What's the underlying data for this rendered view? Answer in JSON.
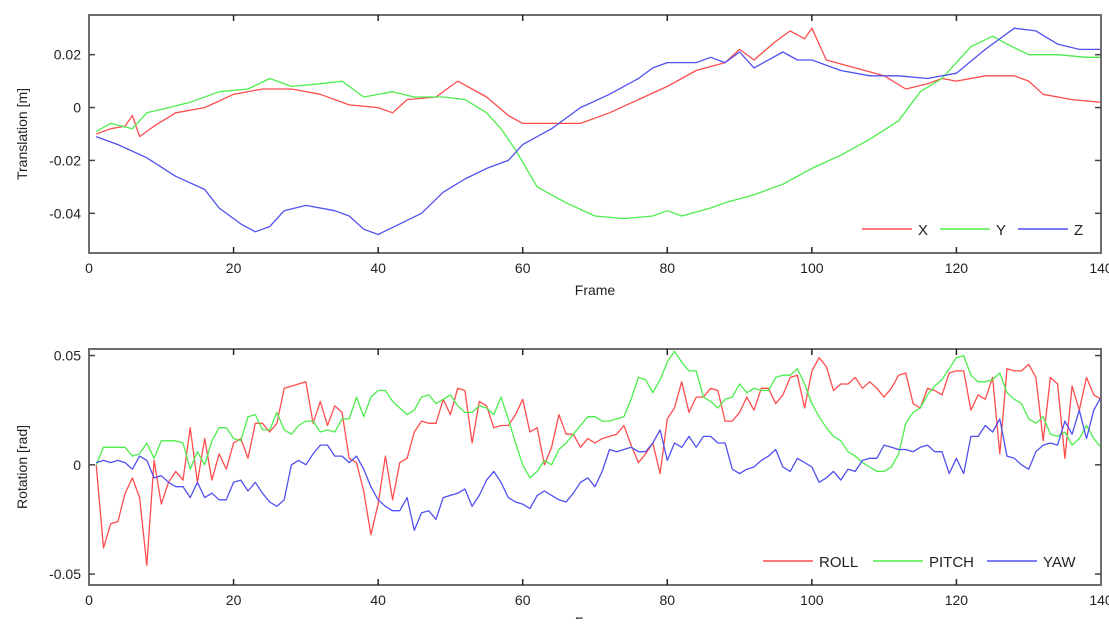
{
  "chart_data": [
    {
      "type": "line",
      "xlabel": "Frame",
      "ylabel": "Translation [m]",
      "xlim": [
        0,
        140
      ],
      "ylim": [
        -0.055,
        0.035
      ],
      "xticks": [
        0,
        20,
        40,
        60,
        80,
        100,
        120,
        140
      ],
      "xtick_labels": [
        "0",
        "20",
        "40",
        "60",
        "80",
        "100",
        "120",
        "140"
      ],
      "yticks": [
        0.02,
        0,
        -0.02,
        -0.04
      ],
      "ytick_labels": [
        "0.02",
        "0",
        "-0.02",
        "-0.04"
      ],
      "grid": false,
      "legend_position": "bottom-right",
      "series": [
        {
          "name": "X",
          "color": "#ff4d4d",
          "points": [
            [
              1,
              -0.01
            ],
            [
              3,
              -0.008
            ],
            [
              5,
              -0.007
            ],
            [
              6,
              -0.003
            ],
            [
              7,
              -0.011
            ],
            [
              9,
              -0.007
            ],
            [
              12,
              -0.002
            ],
            [
              16,
              0.0
            ],
            [
              20,
              0.005
            ],
            [
              24,
              0.007
            ],
            [
              28,
              0.007
            ],
            [
              32,
              0.005
            ],
            [
              36,
              0.001
            ],
            [
              40,
              0.0
            ],
            [
              42,
              -0.002
            ],
            [
              44,
              0.003
            ],
            [
              48,
              0.004
            ],
            [
              51,
              0.01
            ],
            [
              55,
              0.004
            ],
            [
              58,
              -0.003
            ],
            [
              60,
              -0.006
            ],
            [
              64,
              -0.006
            ],
            [
              68,
              -0.006
            ],
            [
              72,
              -0.002
            ],
            [
              76,
              0.003
            ],
            [
              80,
              0.008
            ],
            [
              84,
              0.014
            ],
            [
              88,
              0.017
            ],
            [
              90,
              0.022
            ],
            [
              92,
              0.018
            ],
            [
              95,
              0.025
            ],
            [
              97,
              0.029
            ],
            [
              99,
              0.026
            ],
            [
              100,
              0.03
            ],
            [
              102,
              0.018
            ],
            [
              106,
              0.015
            ],
            [
              110,
              0.012
            ],
            [
              113,
              0.007
            ],
            [
              116,
              0.009
            ],
            [
              118,
              0.011
            ],
            [
              120,
              0.01
            ],
            [
              124,
              0.012
            ],
            [
              128,
              0.012
            ],
            [
              130,
              0.01
            ],
            [
              132,
              0.005
            ],
            [
              136,
              0.003
            ],
            [
              140,
              0.002
            ]
          ]
        },
        {
          "name": "Y",
          "color": "#4ded4d",
          "points": [
            [
              1,
              -0.009
            ],
            [
              3,
              -0.006
            ],
            [
              6,
              -0.008
            ],
            [
              8,
              -0.002
            ],
            [
              11,
              0.0
            ],
            [
              14,
              0.002
            ],
            [
              18,
              0.006
            ],
            [
              22,
              0.007
            ],
            [
              25,
              0.011
            ],
            [
              28,
              0.008
            ],
            [
              32,
              0.009
            ],
            [
              35,
              0.01
            ],
            [
              38,
              0.004
            ],
            [
              42,
              0.006
            ],
            [
              45,
              0.004
            ],
            [
              49,
              0.004
            ],
            [
              52,
              0.003
            ],
            [
              55,
              -0.002
            ],
            [
              57,
              -0.008
            ],
            [
              59,
              -0.016
            ],
            [
              62,
              -0.03
            ],
            [
              66,
              -0.036
            ],
            [
              70,
              -0.041
            ],
            [
              74,
              -0.042
            ],
            [
              78,
              -0.041
            ],
            [
              80,
              -0.039
            ],
            [
              82,
              -0.041
            ],
            [
              86,
              -0.038
            ],
            [
              88,
              -0.036
            ],
            [
              92,
              -0.033
            ],
            [
              96,
              -0.029
            ],
            [
              100,
              -0.023
            ],
            [
              104,
              -0.018
            ],
            [
              108,
              -0.012
            ],
            [
              112,
              -0.005
            ],
            [
              115,
              0.006
            ],
            [
              118,
              0.011
            ],
            [
              120,
              0.017
            ],
            [
              122,
              0.023
            ],
            [
              125,
              0.027
            ],
            [
              127,
              0.024
            ],
            [
              130,
              0.02
            ],
            [
              134,
              0.02
            ],
            [
              138,
              0.019
            ],
            [
              140,
              0.019
            ]
          ]
        },
        {
          "name": "Z",
          "color": "#5050f0",
          "points": [
            [
              1,
              -0.011
            ],
            [
              4,
              -0.014
            ],
            [
              8,
              -0.019
            ],
            [
              12,
              -0.026
            ],
            [
              16,
              -0.031
            ],
            [
              18,
              -0.038
            ],
            [
              21,
              -0.044
            ],
            [
              23,
              -0.047
            ],
            [
              25,
              -0.045
            ],
            [
              27,
              -0.039
            ],
            [
              30,
              -0.037
            ],
            [
              34,
              -0.039
            ],
            [
              36,
              -0.041
            ],
            [
              38,
              -0.046
            ],
            [
              40,
              -0.048
            ],
            [
              43,
              -0.044
            ],
            [
              46,
              -0.04
            ],
            [
              49,
              -0.032
            ],
            [
              52,
              -0.027
            ],
            [
              55,
              -0.023
            ],
            [
              58,
              -0.02
            ],
            [
              60,
              -0.014
            ],
            [
              64,
              -0.008
            ],
            [
              68,
              0.0
            ],
            [
              72,
              0.005
            ],
            [
              74,
              0.008
            ],
            [
              76,
              0.011
            ],
            [
              78,
              0.015
            ],
            [
              80,
              0.017
            ],
            [
              84,
              0.017
            ],
            [
              86,
              0.019
            ],
            [
              88,
              0.017
            ],
            [
              90,
              0.021
            ],
            [
              92,
              0.015
            ],
            [
              96,
              0.021
            ],
            [
              98,
              0.018
            ],
            [
              100,
              0.018
            ],
            [
              104,
              0.014
            ],
            [
              108,
              0.012
            ],
            [
              112,
              0.012
            ],
            [
              116,
              0.011
            ],
            [
              120,
              0.013
            ],
            [
              124,
              0.022
            ],
            [
              128,
              0.03
            ],
            [
              131,
              0.029
            ],
            [
              134,
              0.024
            ],
            [
              137,
              0.022
            ],
            [
              140,
              0.022
            ]
          ]
        }
      ]
    },
    {
      "type": "line",
      "xlabel": "Frame",
      "ylabel": "Rotation [rad]",
      "xlim": [
        0,
        140
      ],
      "ylim": [
        -0.055,
        0.053
      ],
      "xticks": [
        0,
        20,
        40,
        60,
        80,
        100,
        120,
        140
      ],
      "xtick_labels": [
        "0",
        "20",
        "40",
        "60",
        "80",
        "100",
        "120",
        "140"
      ],
      "yticks": [
        0.05,
        0,
        -0.05
      ],
      "ytick_labels": [
        "0.05",
        "0",
        "-0.05"
      ],
      "grid": false,
      "legend_position": "bottom-right",
      "x_first": 1,
      "series": [
        {
          "name": "ROLL",
          "color": "#ff4d4d",
          "values": [
            0,
            -0.038,
            -0.027,
            -0.026,
            -0.013,
            -0.006,
            -0.015,
            -0.046,
            0.002,
            -0.018,
            -0.008,
            -0.003,
            -0.007,
            0.017,
            -0.008,
            0.012,
            -0.007,
            0.005,
            -0.002,
            0.01,
            0.012,
            0.003,
            0.019,
            0.019,
            0.015,
            0.019,
            0.035,
            0.036,
            0.037,
            0.038,
            0.019,
            0.029,
            0.018,
            0.027,
            0.024,
            0.003,
            0.001,
            -0.012,
            -0.032,
            -0.018,
            0.004,
            -0.016,
            0.001,
            0.003,
            0.015,
            0.02,
            0.019,
            0.019,
            0.03,
            0.023,
            0.035,
            0.034,
            0.01,
            0.029,
            0.027,
            0.017,
            0.018,
            0.018,
            0.023,
            0.03,
            0.015,
            0.017,
            0.0,
            0.008,
            0.023,
            0.014,
            0.014,
            0.008,
            0.012,
            0.01,
            0.012,
            0.013,
            0.014,
            0.018,
            0.009,
            0.001,
            0.005,
            0.01,
            -0.004,
            0.021,
            0.026,
            0.038,
            0.024,
            0.031,
            0.031,
            0.035,
            0.034,
            0.02,
            0.02,
            0.024,
            0.031,
            0.025,
            0.035,
            0.035,
            0.028,
            0.032,
            0.04,
            0.041,
            0.026,
            0.043,
            0.049,
            0.045,
            0.034,
            0.037,
            0.037,
            0.04,
            0.035,
            0.038,
            0.035,
            0.031,
            0.035,
            0.041,
            0.042,
            0.028,
            0.026,
            0.035,
            0.034,
            0.032,
            0.042,
            0.043,
            0.043,
            0.025,
            0.032,
            0.03,
            0.04,
            0.005,
            0.044,
            0.043,
            0.043,
            0.046,
            0.04,
            0.011,
            0.04,
            0.037,
            0.003,
            0.036,
            0.025,
            0.04,
            0.032,
            0.03
          ]
        },
        {
          "name": "PITCH",
          "color": "#4ded4d",
          "values": [
            0,
            0.008,
            0.008,
            0.008,
            0.008,
            0.004,
            0.005,
            0.01,
            0.003,
            0.011,
            0.011,
            0.011,
            0.01,
            -0.002,
            0.006,
            0.0,
            0.011,
            0.017,
            0.017,
            0.012,
            0.011,
            0.022,
            0.023,
            0.016,
            0.016,
            0.024,
            0.016,
            0.014,
            0.018,
            0.02,
            0.02,
            0.015,
            0.016,
            0.015,
            0.021,
            0.021,
            0.031,
            0.022,
            0.031,
            0.034,
            0.034,
            0.029,
            0.026,
            0.023,
            0.025,
            0.031,
            0.032,
            0.028,
            0.03,
            0.032,
            0.027,
            0.024,
            0.024,
            0.027,
            0.026,
            0.023,
            0.031,
            0.021,
            0.01,
            0.0,
            -0.006,
            -0.003,
            0.002,
            0.0,
            0.007,
            0.01,
            0.014,
            0.018,
            0.022,
            0.022,
            0.02,
            0.02,
            0.021,
            0.022,
            0.03,
            0.04,
            0.039,
            0.033,
            0.039,
            0.047,
            0.052,
            0.047,
            0.043,
            0.043,
            0.031,
            0.029,
            0.026,
            0.03,
            0.031,
            0.037,
            0.033,
            0.035,
            0.034,
            0.034,
            0.04,
            0.041,
            0.041,
            0.044,
            0.037,
            0.028,
            0.022,
            0.017,
            0.013,
            0.011,
            0.006,
            0.004,
            0.001,
            -0.001,
            -0.003,
            -0.003,
            -0.001,
            0.005,
            0.019,
            0.024,
            0.026,
            0.032,
            0.036,
            0.039,
            0.044,
            0.049,
            0.05,
            0.041,
            0.038,
            0.038,
            0.039,
            0.042,
            0.033,
            0.03,
            0.028,
            0.021,
            0.019,
            0.022,
            0.014,
            0.013,
            0.015,
            0.009,
            0.012,
            0.018,
            0.012,
            0.008
          ]
        },
        {
          "name": "YAW",
          "color": "#5050f0",
          "values": [
            0.001,
            0.002,
            0.001,
            0.002,
            0.001,
            -0.002,
            0.004,
            0.002,
            -0.006,
            -0.005,
            -0.008,
            -0.01,
            -0.01,
            -0.015,
            -0.008,
            -0.015,
            -0.013,
            -0.016,
            -0.016,
            -0.008,
            -0.007,
            -0.012,
            -0.008,
            -0.013,
            -0.017,
            -0.019,
            -0.016,
            0.0,
            0.002,
            0.0,
            0.005,
            0.009,
            0.009,
            0.004,
            0.004,
            0.001,
            0.004,
            -0.002,
            -0.01,
            -0.016,
            -0.019,
            -0.021,
            -0.021,
            -0.015,
            -0.03,
            -0.022,
            -0.021,
            -0.025,
            -0.015,
            -0.014,
            -0.013,
            -0.011,
            -0.019,
            -0.014,
            -0.007,
            -0.003,
            -0.008,
            -0.015,
            -0.017,
            -0.018,
            -0.02,
            -0.014,
            -0.012,
            -0.014,
            -0.016,
            -0.017,
            -0.013,
            -0.008,
            -0.006,
            -0.01,
            -0.003,
            0.007,
            0.006,
            0.007,
            0.008,
            0.006,
            0.006,
            0.01,
            0.016,
            0.002,
            0.01,
            0.008,
            0.013,
            0.008,
            0.013,
            0.013,
            0.01,
            0.01,
            -0.002,
            -0.004,
            -0.002,
            -0.001,
            0.002,
            0.004,
            0.007,
            -0.001,
            -0.003,
            0.003,
            0.001,
            -0.001,
            -0.008,
            -0.006,
            -0.003,
            -0.007,
            -0.002,
            -0.003,
            0.002,
            0.003,
            0.003,
            0.009,
            0.008,
            0.007,
            0.007,
            0.006,
            0.008,
            0.009,
            0.006,
            0.006,
            -0.004,
            0.003,
            -0.004,
            0.013,
            0.013,
            0.018,
            0.015,
            0.021,
            0.004,
            0.003,
            0.0,
            -0.002,
            0.006,
            0.009,
            0.01,
            0.009,
            0.02,
            0.014,
            0.025,
            0.012,
            0.025,
            0.031
          ]
        }
      ]
    }
  ]
}
